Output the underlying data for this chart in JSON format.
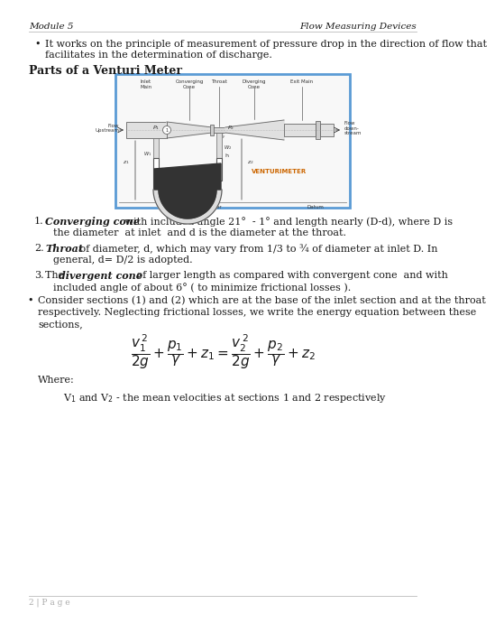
{
  "header_left": "Module 5",
  "header_right": "Flow Measuring Devices",
  "bullet1_line1": "It works on the principle of measurement of pressure drop in the direction of flow that",
  "bullet1_line2": "facilitates in the determination of discharge.",
  "section_title": "Parts of a Venturi Meter",
  "item1_bold": "Converging cone",
  "item1_rest1": " with included angle 21°  - 1° and length nearly (D-d), where D is",
  "item1_rest2": "the diameter  at inlet  and d is the diameter at the throat.",
  "item2_bold": "Throat",
  "item2_rest1": " of diameter, d, which may vary from 1/3 to ¾ of diameter at inlet D. In",
  "item2_rest2": "general, d= D/2 is adopted.",
  "item3_pre": "The ",
  "item3_bold": "divergent cone",
  "item3_rest1": " of larger length as compared with convergent cone  and with",
  "item3_rest2": "included angle of about 6° ( to minimize frictional losses ).",
  "bullet2_line1": "Consider sections (1) and (2) which are at the base of the inlet section and at the throat",
  "bullet2_line2": "respectively. Neglecting frictional losses, we write the energy equation between these",
  "bullet2_line3": "sections,",
  "where_text": "Where:",
  "v1v2_text": "V₁ and V₂ - the mean velocities at sections 1 and 2 respectively",
  "page_label": "2 | P a g e",
  "bg_color": "#ffffff",
  "text_color": "#1a1a1a",
  "header_color": "#1a1a1a",
  "line_color": "#bbbbbb",
  "image_box_color": "#5b9bd5",
  "font_size_body": 8.0,
  "font_size_header": 7.5,
  "font_size_section": 9.0
}
